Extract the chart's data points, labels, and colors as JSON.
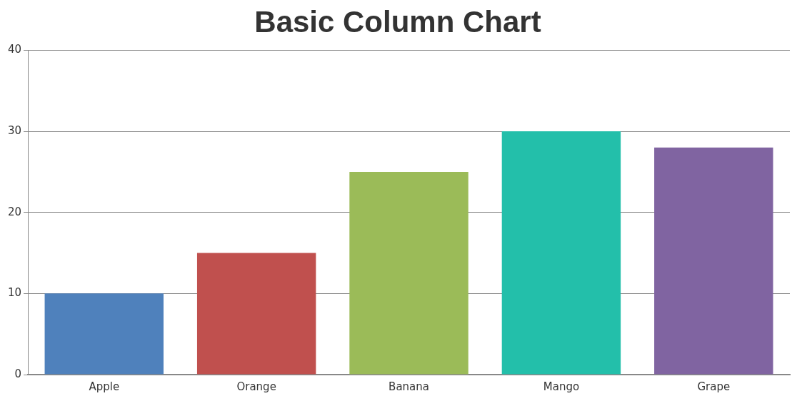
{
  "chart_data": {
    "type": "bar",
    "title": "Basic Column Chart",
    "categories": [
      "Apple",
      "Orange",
      "Banana",
      "Mango",
      "Grape"
    ],
    "values": [
      10,
      15,
      25,
      30,
      28
    ],
    "colors": [
      "#4f81bc",
      "#c0504e",
      "#9bbb58",
      "#23bfaa",
      "#8064a1"
    ],
    "ylim": [
      0,
      40
    ],
    "yticks": [
      0,
      10,
      20,
      30,
      40
    ],
    "grid": "y",
    "legend": false
  }
}
